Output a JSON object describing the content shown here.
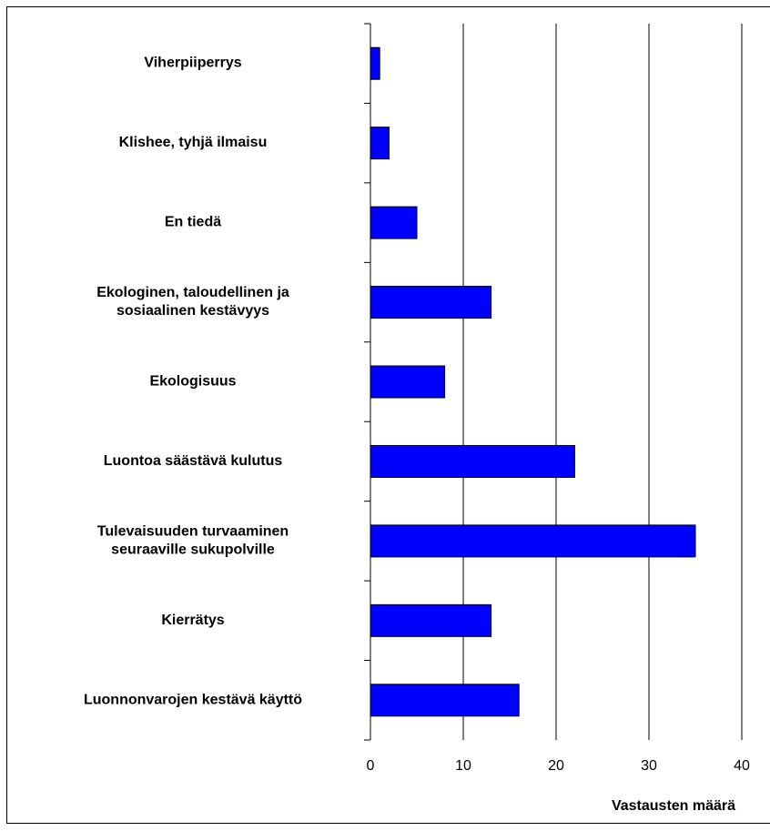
{
  "chart_data": {
    "type": "barh",
    "x_label": "Vastausten määrä",
    "categories": [
      "Viherpiiperrys",
      "Klishee, tyhjä ilmaisu",
      "En tiedä",
      "Ekologinen, taloudellinen ja\nsosiaalinen kestävyys",
      "Ekologisuus",
      "Luontoa säästävä kulutus",
      "Tulevaisuuden turvaaminen\nseuraaville sukupolville",
      "Kierrätys",
      "Luonnonvarojen kestävä käyttö"
    ],
    "values": [
      1,
      2,
      5,
      13,
      8,
      22,
      35,
      13,
      16
    ],
    "color": "#0000ff",
    "xlim": [
      0,
      40
    ],
    "xticks": [
      0,
      10,
      20,
      30,
      40
    ],
    "grid": true
  }
}
